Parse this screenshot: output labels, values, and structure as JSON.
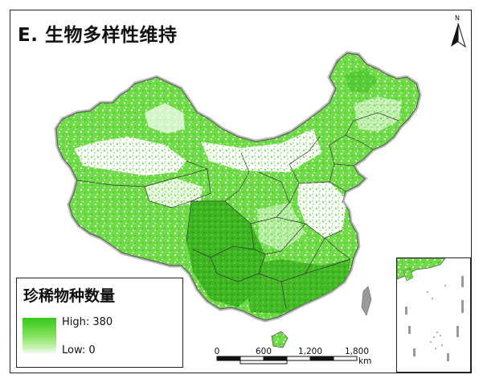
{
  "title": "E. 生物多样性维持",
  "legend": {
    "title": "珍稀物种数量",
    "high_label": "High: 380",
    "low_label": "Low: 0",
    "color_high": "#34c91a",
    "color_low": "#ffffff"
  },
  "scale_bar": {
    "tick_labels": [
      "0",
      "600",
      "1,200",
      "1,800"
    ],
    "unit": "km"
  },
  "north_arrow": {
    "label": "N",
    "icon": "north-arrow-icon"
  },
  "colors": {
    "map_green": "#5fd63a",
    "map_dark": "#2f9e16",
    "boundary": "#333333",
    "outline": "#9a9a9a"
  }
}
